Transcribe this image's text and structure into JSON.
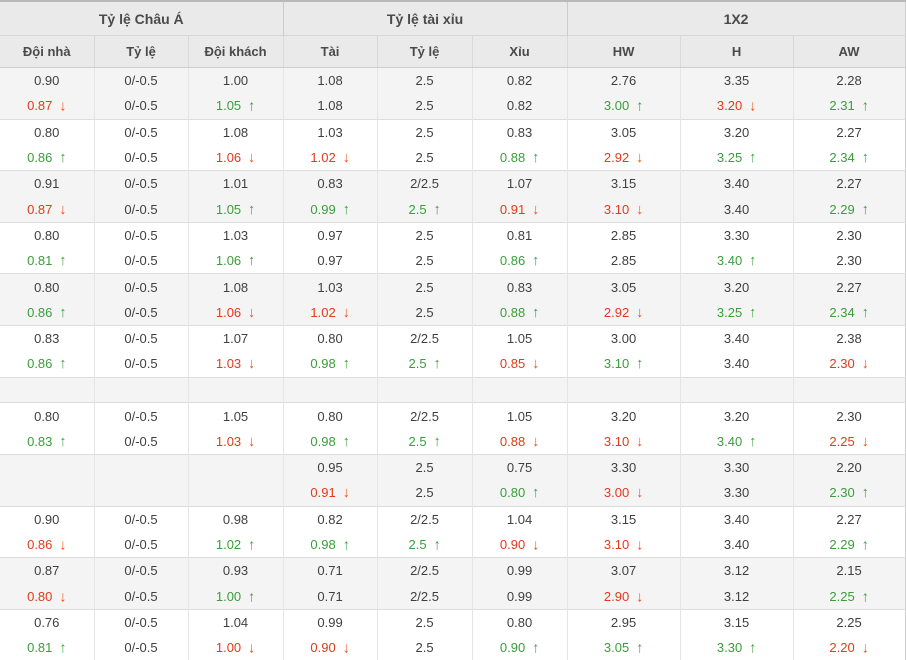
{
  "header": {
    "groups": [
      {
        "label": "Tỷ lệ Châu Á",
        "span": 3
      },
      {
        "label": "Tỷ lệ tài xỉu",
        "span": 3
      },
      {
        "label": "1X2",
        "span": 3
      }
    ],
    "columns": [
      "Đội nhà",
      "Tỷ lệ",
      "Đội khách",
      "Tài",
      "Tỷ lệ",
      "Xỉu",
      "HW",
      "H",
      "AW"
    ]
  },
  "icons": {
    "trend_up": "↑",
    "trend_down": "↓"
  },
  "colors": {
    "trend_up": "#3b9d3b",
    "trend_down": "#e23a1c",
    "header_bg": "#eaeaea",
    "band_gray": "#f4f4f4",
    "band_white": "#ffffff",
    "text": "#3f3f3f",
    "border": "#dcdcdc"
  },
  "rows": [
    {
      "band": "gray",
      "sep": false,
      "cells": [
        [
          "0.90",
          ""
        ],
        [
          "0/-0.5",
          ""
        ],
        [
          "1.00",
          ""
        ],
        [
          "1.08",
          ""
        ],
        [
          "2.5",
          ""
        ],
        [
          "0.82",
          ""
        ],
        [
          "2.76",
          ""
        ],
        [
          "3.35",
          ""
        ],
        [
          "2.28",
          ""
        ]
      ]
    },
    {
      "band": "gray",
      "sep": false,
      "cells": [
        [
          "0.87",
          "d"
        ],
        [
          "0/-0.5",
          ""
        ],
        [
          "1.05",
          "u"
        ],
        [
          "1.08",
          ""
        ],
        [
          "2.5",
          ""
        ],
        [
          "0.82",
          ""
        ],
        [
          "3.00",
          "u"
        ],
        [
          "3.20",
          "d"
        ],
        [
          "2.31",
          "u"
        ]
      ]
    },
    {
      "band": "white",
      "sep": true,
      "cells": [
        [
          "0.80",
          ""
        ],
        [
          "0/-0.5",
          ""
        ],
        [
          "1.08",
          ""
        ],
        [
          "1.03",
          ""
        ],
        [
          "2.5",
          ""
        ],
        [
          "0.83",
          ""
        ],
        [
          "3.05",
          ""
        ],
        [
          "3.20",
          ""
        ],
        [
          "2.27",
          ""
        ]
      ]
    },
    {
      "band": "white",
      "sep": false,
      "cells": [
        [
          "0.86",
          "u"
        ],
        [
          "0/-0.5",
          ""
        ],
        [
          "1.06",
          "d"
        ],
        [
          "1.02",
          "d"
        ],
        [
          "2.5",
          ""
        ],
        [
          "0.88",
          "u"
        ],
        [
          "2.92",
          "d"
        ],
        [
          "3.25",
          "u"
        ],
        [
          "2.34",
          "u"
        ]
      ]
    },
    {
      "band": "gray",
      "sep": true,
      "cells": [
        [
          "0.91",
          ""
        ],
        [
          "0/-0.5",
          ""
        ],
        [
          "1.01",
          ""
        ],
        [
          "0.83",
          ""
        ],
        [
          "2/2.5",
          ""
        ],
        [
          "1.07",
          ""
        ],
        [
          "3.15",
          ""
        ],
        [
          "3.40",
          ""
        ],
        [
          "2.27",
          ""
        ]
      ]
    },
    {
      "band": "gray",
      "sep": false,
      "cells": [
        [
          "0.87",
          "d"
        ],
        [
          "0/-0.5",
          ""
        ],
        [
          "1.05",
          "u"
        ],
        [
          "0.99",
          "u"
        ],
        [
          "2.5",
          "u"
        ],
        [
          "0.91",
          "d"
        ],
        [
          "3.10",
          "d"
        ],
        [
          "3.40",
          ""
        ],
        [
          "2.29",
          "u"
        ]
      ]
    },
    {
      "band": "white",
      "sep": true,
      "cells": [
        [
          "0.80",
          ""
        ],
        [
          "0/-0.5",
          ""
        ],
        [
          "1.03",
          ""
        ],
        [
          "0.97",
          ""
        ],
        [
          "2.5",
          ""
        ],
        [
          "0.81",
          ""
        ],
        [
          "2.85",
          ""
        ],
        [
          "3.30",
          ""
        ],
        [
          "2.30",
          ""
        ]
      ]
    },
    {
      "band": "white",
      "sep": false,
      "cells": [
        [
          "0.81",
          "u"
        ],
        [
          "0/-0.5",
          ""
        ],
        [
          "1.06",
          "u"
        ],
        [
          "0.97",
          ""
        ],
        [
          "2.5",
          ""
        ],
        [
          "0.86",
          "u"
        ],
        [
          "2.85",
          ""
        ],
        [
          "3.40",
          "u"
        ],
        [
          "2.30",
          ""
        ]
      ]
    },
    {
      "band": "gray",
      "sep": true,
      "cells": [
        [
          "0.80",
          ""
        ],
        [
          "0/-0.5",
          ""
        ],
        [
          "1.08",
          ""
        ],
        [
          "1.03",
          ""
        ],
        [
          "2.5",
          ""
        ],
        [
          "0.83",
          ""
        ],
        [
          "3.05",
          ""
        ],
        [
          "3.20",
          ""
        ],
        [
          "2.27",
          ""
        ]
      ]
    },
    {
      "band": "gray",
      "sep": false,
      "cells": [
        [
          "0.86",
          "u"
        ],
        [
          "0/-0.5",
          ""
        ],
        [
          "1.06",
          "d"
        ],
        [
          "1.02",
          "d"
        ],
        [
          "2.5",
          ""
        ],
        [
          "0.88",
          "u"
        ],
        [
          "2.92",
          "d"
        ],
        [
          "3.25",
          "u"
        ],
        [
          "2.34",
          "u"
        ]
      ]
    },
    {
      "band": "white",
      "sep": true,
      "cells": [
        [
          "0.83",
          ""
        ],
        [
          "0/-0.5",
          ""
        ],
        [
          "1.07",
          ""
        ],
        [
          "0.80",
          ""
        ],
        [
          "2/2.5",
          ""
        ],
        [
          "1.05",
          ""
        ],
        [
          "3.00",
          ""
        ],
        [
          "3.40",
          ""
        ],
        [
          "2.38",
          ""
        ]
      ]
    },
    {
      "band": "white",
      "sep": false,
      "cells": [
        [
          "0.86",
          "u"
        ],
        [
          "0/-0.5",
          ""
        ],
        [
          "1.03",
          "d"
        ],
        [
          "0.98",
          "u"
        ],
        [
          "2.5",
          "u"
        ],
        [
          "0.85",
          "d"
        ],
        [
          "3.10",
          "u"
        ],
        [
          "3.40",
          ""
        ],
        [
          "2.30",
          "d"
        ]
      ]
    },
    {
      "band": "gray",
      "sep": true,
      "cells": [
        [
          "",
          ""
        ],
        [
          "",
          ""
        ],
        [
          "",
          ""
        ],
        [
          "",
          ""
        ],
        [
          "",
          ""
        ],
        [
          "",
          ""
        ],
        [
          "",
          ""
        ],
        [
          "",
          ""
        ],
        [
          "",
          ""
        ]
      ]
    },
    {
      "band": "white",
      "sep": true,
      "cells": [
        [
          "0.80",
          ""
        ],
        [
          "0/-0.5",
          ""
        ],
        [
          "1.05",
          ""
        ],
        [
          "0.80",
          ""
        ],
        [
          "2/2.5",
          ""
        ],
        [
          "1.05",
          ""
        ],
        [
          "3.20",
          ""
        ],
        [
          "3.20",
          ""
        ],
        [
          "2.30",
          ""
        ]
      ]
    },
    {
      "band": "white",
      "sep": false,
      "cells": [
        [
          "0.83",
          "u"
        ],
        [
          "0/-0.5",
          ""
        ],
        [
          "1.03",
          "d"
        ],
        [
          "0.98",
          "u"
        ],
        [
          "2.5",
          "u"
        ],
        [
          "0.88",
          "d"
        ],
        [
          "3.10",
          "d"
        ],
        [
          "3.40",
          "u"
        ],
        [
          "2.25",
          "d"
        ]
      ]
    },
    {
      "band": "gray",
      "sep": true,
      "cells": [
        [
          "",
          ""
        ],
        [
          "",
          ""
        ],
        [
          "",
          ""
        ],
        [
          "0.95",
          ""
        ],
        [
          "2.5",
          ""
        ],
        [
          "0.75",
          ""
        ],
        [
          "3.30",
          ""
        ],
        [
          "3.30",
          ""
        ],
        [
          "2.20",
          ""
        ]
      ]
    },
    {
      "band": "gray",
      "sep": false,
      "cells": [
        [
          "",
          ""
        ],
        [
          "",
          ""
        ],
        [
          "",
          ""
        ],
        [
          "0.91",
          "d"
        ],
        [
          "2.5",
          ""
        ],
        [
          "0.80",
          "u"
        ],
        [
          "3.00",
          "d"
        ],
        [
          "3.30",
          ""
        ],
        [
          "2.30",
          "u"
        ]
      ]
    },
    {
      "band": "white",
      "sep": true,
      "cells": [
        [
          "0.90",
          ""
        ],
        [
          "0/-0.5",
          ""
        ],
        [
          "0.98",
          ""
        ],
        [
          "0.82",
          ""
        ],
        [
          "2/2.5",
          ""
        ],
        [
          "1.04",
          ""
        ],
        [
          "3.15",
          ""
        ],
        [
          "3.40",
          ""
        ],
        [
          "2.27",
          ""
        ]
      ]
    },
    {
      "band": "white",
      "sep": false,
      "cells": [
        [
          "0.86",
          "d"
        ],
        [
          "0/-0.5",
          ""
        ],
        [
          "1.02",
          "u"
        ],
        [
          "0.98",
          "u"
        ],
        [
          "2.5",
          "u"
        ],
        [
          "0.90",
          "d"
        ],
        [
          "3.10",
          "d"
        ],
        [
          "3.40",
          ""
        ],
        [
          "2.29",
          "u"
        ]
      ]
    },
    {
      "band": "gray",
      "sep": true,
      "cells": [
        [
          "0.87",
          ""
        ],
        [
          "0/-0.5",
          ""
        ],
        [
          "0.93",
          ""
        ],
        [
          "0.71",
          ""
        ],
        [
          "2/2.5",
          ""
        ],
        [
          "0.99",
          ""
        ],
        [
          "3.07",
          ""
        ],
        [
          "3.12",
          ""
        ],
        [
          "2.15",
          ""
        ]
      ]
    },
    {
      "band": "gray",
      "sep": false,
      "cells": [
        [
          "0.80",
          "d"
        ],
        [
          "0/-0.5",
          ""
        ],
        [
          "1.00",
          "u"
        ],
        [
          "0.71",
          ""
        ],
        [
          "2/2.5",
          ""
        ],
        [
          "0.99",
          ""
        ],
        [
          "2.90",
          "d"
        ],
        [
          "3.12",
          ""
        ],
        [
          "2.25",
          "u"
        ]
      ]
    },
    {
      "band": "white",
      "sep": true,
      "cells": [
        [
          "0.76",
          ""
        ],
        [
          "0/-0.5",
          ""
        ],
        [
          "1.04",
          ""
        ],
        [
          "0.99",
          ""
        ],
        [
          "2.5",
          ""
        ],
        [
          "0.80",
          ""
        ],
        [
          "2.95",
          ""
        ],
        [
          "3.15",
          ""
        ],
        [
          "2.25",
          ""
        ]
      ]
    },
    {
      "band": "white",
      "sep": false,
      "cells": [
        [
          "0.81",
          "u"
        ],
        [
          "0/-0.5",
          ""
        ],
        [
          "1.00",
          "d"
        ],
        [
          "0.90",
          "d"
        ],
        [
          "2.5",
          ""
        ],
        [
          "0.90",
          "u"
        ],
        [
          "3.05",
          "u"
        ],
        [
          "3.30",
          "u"
        ],
        [
          "2.20",
          "d"
        ]
      ]
    }
  ]
}
